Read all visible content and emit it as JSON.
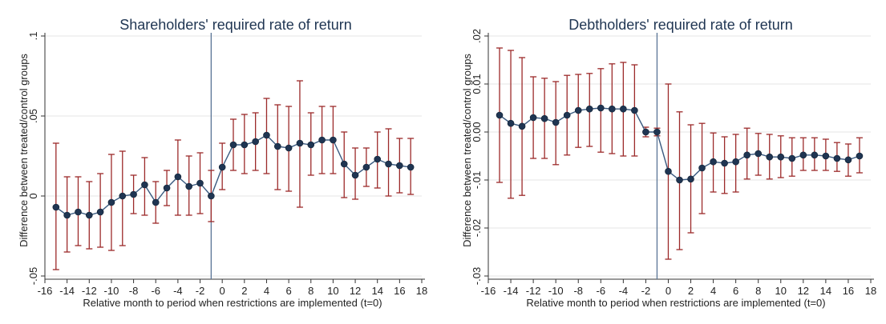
{
  "chart_data": [
    {
      "type": "scatter",
      "title": "Shareholders' required rate of return",
      "xlabel": "Relative month to period when restrictions are implemented (t=0)",
      "ylabel": "Difference between treated/control groups",
      "xlim": [
        -16,
        18
      ],
      "ylim": [
        -0.05,
        0.1
      ],
      "xticks": [
        -16,
        -14,
        -12,
        -10,
        -8,
        -6,
        -4,
        -2,
        0,
        2,
        4,
        6,
        8,
        10,
        12,
        14,
        16,
        18
      ],
      "xtick_labels": [
        "-16",
        "-14",
        "-12",
        "-10",
        "-8",
        "-6",
        "-4",
        "-2",
        "0",
        "2",
        "4",
        "6",
        "8",
        "10",
        "12",
        "14",
        "16",
        "18"
      ],
      "yticks": [
        -0.05,
        0,
        0.05,
        0.1
      ],
      "ytick_labels": [
        "-.05",
        "0",
        ".05",
        ".1"
      ],
      "reference_line_x": -1,
      "grid": true,
      "colors": {
        "point": "#1f3552",
        "line": "#3a5a80",
        "errorbar": "#9c2a2a",
        "vline": "#5a7596",
        "grid": "#e4e4e4"
      },
      "x": [
        -15,
        -14,
        -13,
        -12,
        -11,
        -10,
        -9,
        -8,
        -7,
        -6,
        -5,
        -4,
        -3,
        -2,
        -1,
        0,
        1,
        2,
        3,
        4,
        5,
        6,
        7,
        8,
        9,
        10,
        11,
        12,
        13,
        14,
        15,
        16,
        17
      ],
      "y": [
        -0.007,
        -0.012,
        -0.01,
        -0.012,
        -0.01,
        -0.004,
        0.0,
        0.001,
        0.007,
        -0.004,
        0.005,
        0.012,
        0.006,
        0.008,
        0.0,
        0.018,
        0.032,
        0.032,
        0.034,
        0.038,
        0.031,
        0.03,
        0.033,
        0.032,
        0.035,
        0.035,
        0.02,
        0.013,
        0.018,
        0.023,
        0.02,
        0.019,
        0.018
      ],
      "ci_low": [
        -0.046,
        -0.035,
        -0.031,
        -0.033,
        -0.032,
        -0.034,
        -0.031,
        -0.011,
        -0.012,
        -0.017,
        -0.006,
        -0.012,
        -0.012,
        -0.011,
        -0.016,
        0.004,
        0.016,
        0.014,
        0.016,
        0.014,
        0.004,
        0.003,
        -0.007,
        0.013,
        0.014,
        0.014,
        -0.001,
        -0.002,
        0.006,
        0.005,
        0.0,
        0.002,
        0.001
      ],
      "ci_high": [
        0.033,
        0.012,
        0.012,
        0.009,
        0.014,
        0.026,
        0.028,
        0.013,
        0.024,
        0.009,
        0.016,
        0.035,
        0.025,
        0.027,
        0.016,
        0.033,
        0.048,
        0.051,
        0.052,
        0.061,
        0.057,
        0.056,
        0.072,
        0.052,
        0.056,
        0.056,
        0.04,
        0.03,
        0.03,
        0.04,
        0.042,
        0.036,
        0.036
      ]
    },
    {
      "type": "scatter",
      "title": "Debtholders' required rate of return",
      "xlabel": "Relative month to period when restrictions are implemented (t=0)",
      "ylabel": "Difference between treated/control groups",
      "xlim": [
        -16,
        18
      ],
      "ylim": [
        -0.03,
        0.02
      ],
      "xticks": [
        -16,
        -14,
        -12,
        -10,
        -8,
        -6,
        -4,
        -2,
        0,
        2,
        4,
        6,
        8,
        10,
        12,
        14,
        16,
        18
      ],
      "xtick_labels": [
        "-16",
        "-14",
        "-12",
        "-10",
        "-8",
        "-6",
        "-4",
        "-2",
        "0",
        "2",
        "4",
        "6",
        "8",
        "10",
        "12",
        "14",
        "16",
        "18"
      ],
      "yticks": [
        -0.03,
        -0.02,
        -0.01,
        0,
        0.01,
        0.02
      ],
      "ytick_labels": [
        "-.03",
        "-.02",
        "-.01",
        "0.00",
        "0.01",
        ".02"
      ],
      "reference_line_x": -1,
      "grid": true,
      "colors": {
        "point": "#1f3552",
        "line": "#3a5a80",
        "errorbar": "#9c2a2a",
        "vline": "#5a7596",
        "grid": "#e4e4e4"
      },
      "x": [
        -15,
        -14,
        -13,
        -12,
        -11,
        -10,
        -9,
        -8,
        -7,
        -6,
        -5,
        -4,
        -3,
        -2,
        -1,
        0,
        1,
        2,
        3,
        4,
        5,
        6,
        7,
        8,
        9,
        10,
        11,
        12,
        13,
        14,
        15,
        16,
        17
      ],
      "y": [
        0.0035,
        0.0018,
        0.0012,
        0.003,
        0.0028,
        0.002,
        0.0035,
        0.0045,
        0.0048,
        0.005,
        0.0048,
        0.0048,
        0.0045,
        0.0,
        0.0,
        -0.0082,
        -0.01,
        -0.0098,
        -0.0075,
        -0.0062,
        -0.0065,
        -0.0062,
        -0.0048,
        -0.0045,
        -0.0052,
        -0.0052,
        -0.0055,
        -0.0048,
        -0.0048,
        -0.005,
        -0.0055,
        -0.0058,
        -0.005
      ],
      "ci_low": [
        -0.0105,
        -0.0138,
        -0.0132,
        -0.0055,
        -0.0055,
        -0.0068,
        -0.0048,
        -0.0032,
        -0.003,
        -0.0042,
        -0.0045,
        -0.005,
        -0.005,
        -0.001,
        -0.0008,
        -0.0265,
        -0.0245,
        -0.021,
        -0.017,
        -0.0125,
        -0.0128,
        -0.0125,
        -0.0098,
        -0.009,
        -0.0098,
        -0.0095,
        -0.0092,
        -0.008,
        -0.008,
        -0.008,
        -0.0082,
        -0.0092,
        -0.0085
      ],
      "ci_high": [
        0.0175,
        0.017,
        0.0155,
        0.0115,
        0.0112,
        0.0105,
        0.0118,
        0.012,
        0.0122,
        0.0132,
        0.0142,
        0.0145,
        0.014,
        0.001,
        0.0008,
        0.01,
        0.0042,
        0.0015,
        0.0018,
        -0.0002,
        -0.001,
        -0.0005,
        0.0008,
        -0.0003,
        -0.0005,
        -0.0008,
        -0.0012,
        -0.0012,
        -0.0012,
        -0.0015,
        -0.0022,
        -0.0025,
        -0.0012
      ]
    }
  ]
}
